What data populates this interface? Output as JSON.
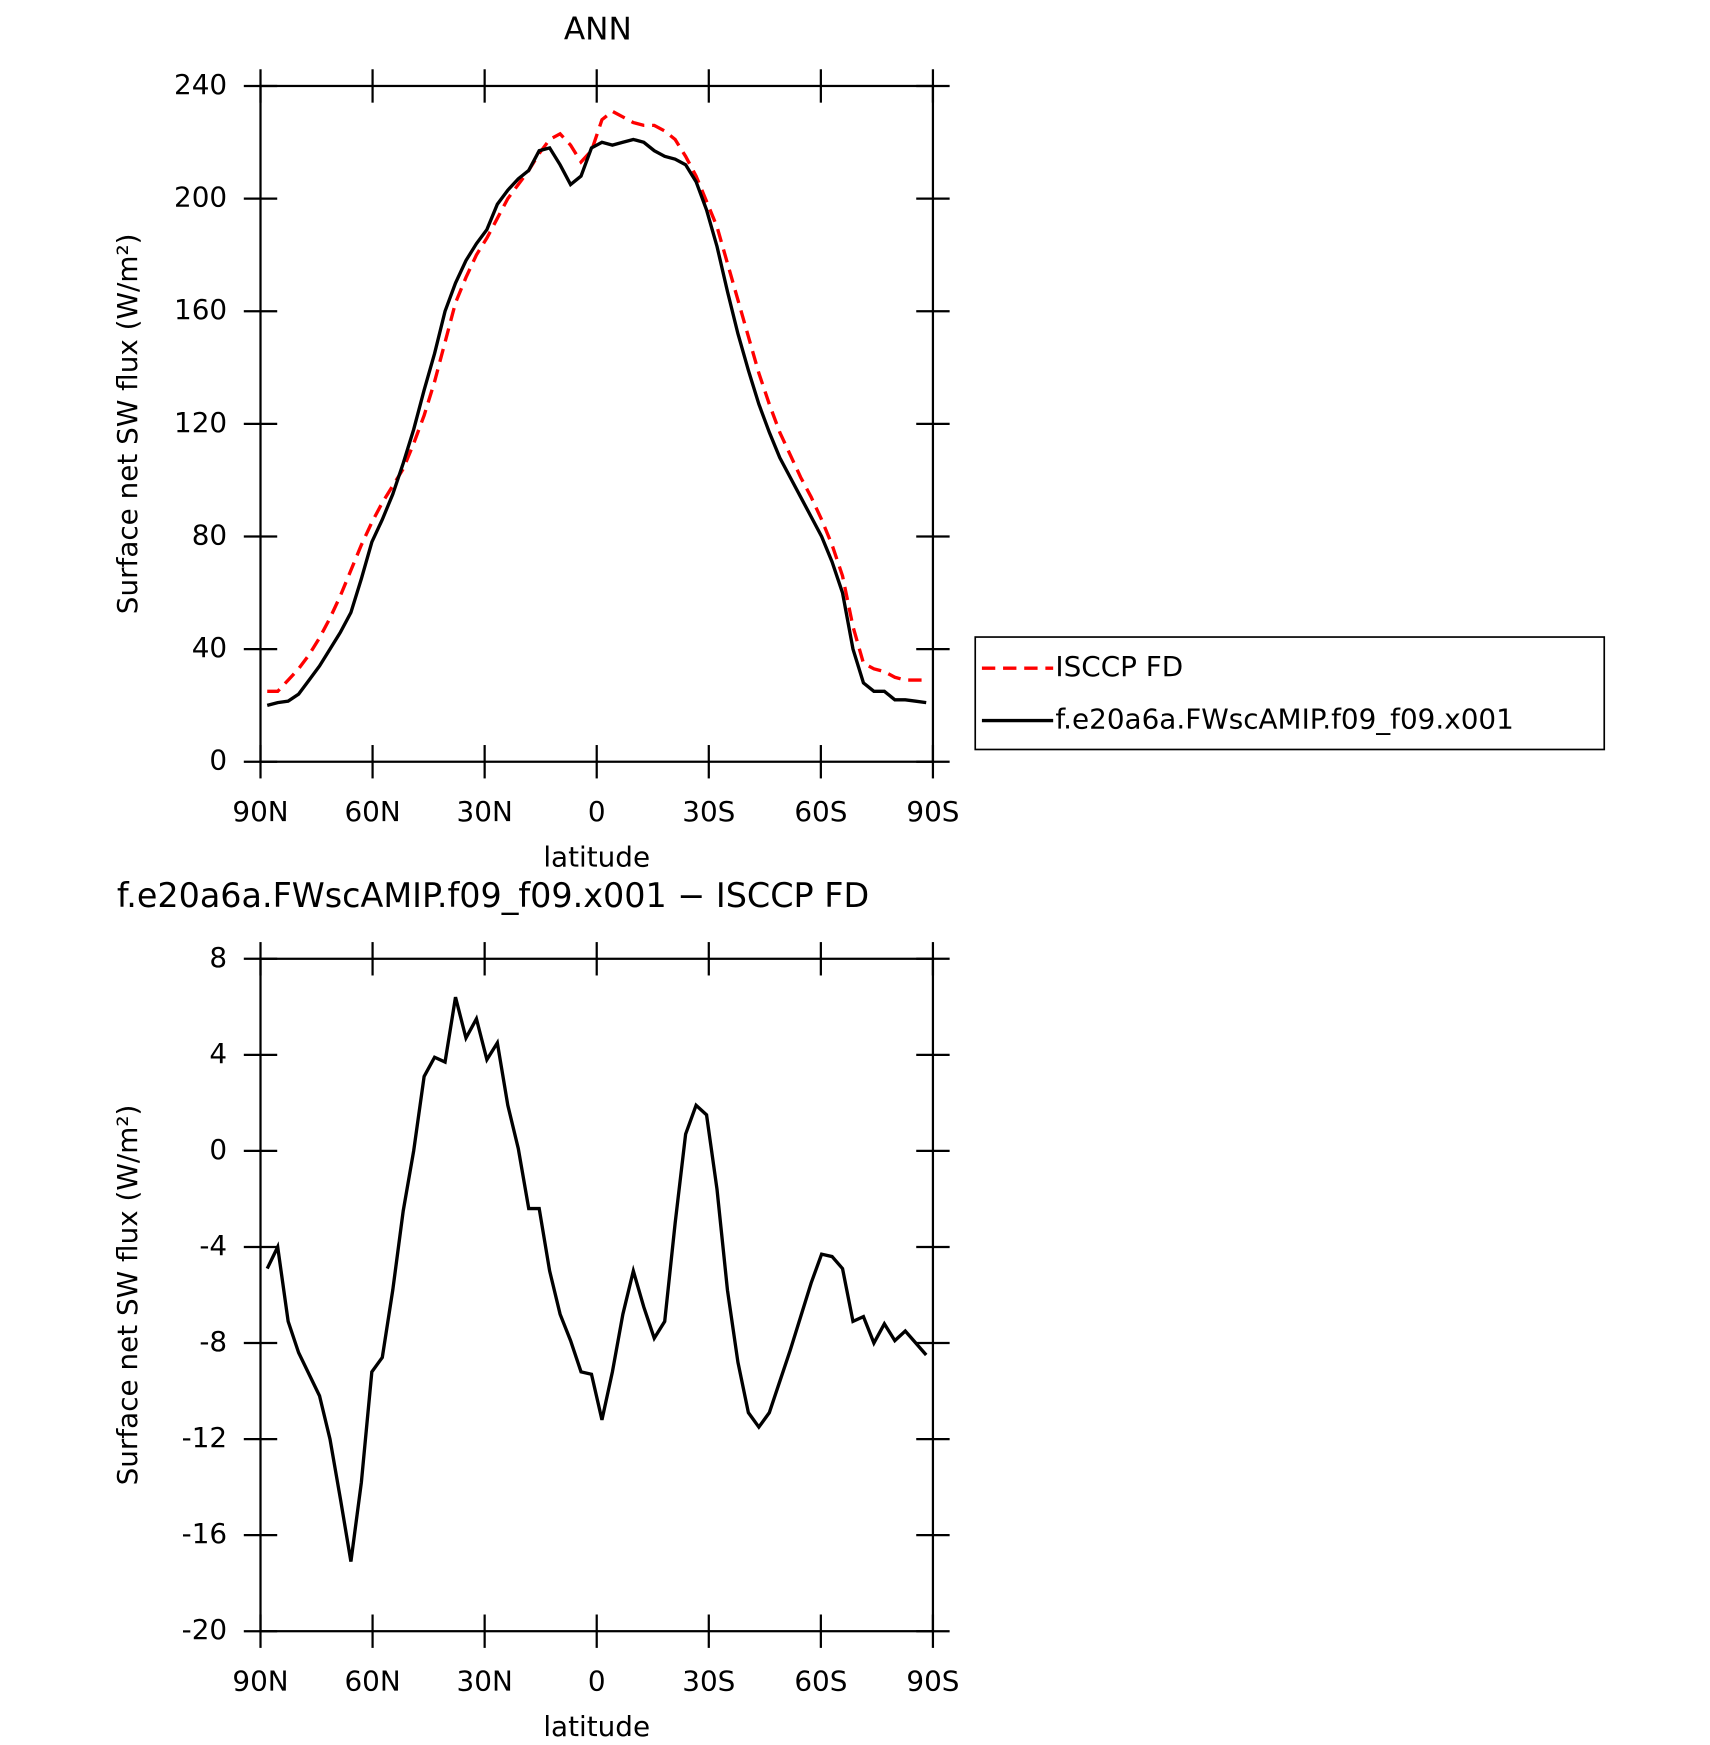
{
  "chart_data": [
    {
      "type": "line",
      "title": "ANN",
      "xlabel": "latitude",
      "ylabel": "Surface net SW flux (W/m²)",
      "x": [
        88.2,
        85.4,
        82.6,
        79.8,
        77.0,
        74.2,
        71.4,
        68.6,
        65.8,
        63.0,
        60.2,
        57.4,
        54.6,
        51.8,
        49.0,
        46.2,
        43.4,
        40.6,
        37.8,
        35.0,
        32.2,
        29.4,
        26.6,
        23.8,
        21.0,
        18.2,
        15.4,
        12.6,
        9.8,
        7.0,
        4.2,
        1.4,
        -1.4,
        -4.2,
        -7.0,
        -9.8,
        -12.6,
        -15.4,
        -18.2,
        -21.0,
        -23.8,
        -26.6,
        -29.4,
        -32.2,
        -35.0,
        -37.8,
        -40.6,
        -43.4,
        -46.2,
        -49.0,
        -51.8,
        -54.6,
        -57.4,
        -60.2,
        -63.0,
        -65.8,
        -68.6,
        -71.4,
        -74.2,
        -77.0,
        -79.8,
        -82.6,
        -85.4,
        -88.2
      ],
      "series": [
        {
          "name": "ISCCP FD",
          "color": "#ff0000",
          "dashed": true,
          "values": [
            25,
            25,
            29,
            33,
            38,
            44,
            51,
            59,
            68,
            77,
            85,
            92,
            98,
            104,
            113,
            123,
            135,
            149,
            163,
            172,
            180,
            186,
            193,
            200,
            205,
            210,
            216,
            221,
            223,
            219,
            213,
            217,
            228,
            231,
            229,
            227,
            226,
            226,
            224,
            221,
            215,
            208,
            199,
            190,
            177,
            164,
            151,
            138,
            127,
            117,
            109,
            101,
            94,
            86,
            77,
            66,
            48,
            35,
            33,
            32,
            30,
            29,
            29,
            29
          ]
        },
        {
          "name": "f.e20a6a.FWscAMIP.f09_f09.x001",
          "color": "#000000",
          "dashed": false,
          "values": [
            20,
            21,
            21.5,
            24,
            29,
            34,
            40,
            46,
            53,
            65,
            78,
            86,
            95,
            106,
            118,
            132,
            145,
            160,
            170,
            178,
            184,
            189,
            198,
            203,
            207,
            210,
            217,
            218,
            212,
            205,
            208,
            218,
            220,
            219,
            220,
            221,
            220,
            217,
            215,
            214,
            212,
            206,
            196,
            183,
            167,
            152,
            139,
            127,
            117,
            108,
            101,
            94,
            87,
            80,
            71,
            60,
            40,
            28,
            25,
            25,
            22,
            22,
            21.5,
            21
          ]
        }
      ],
      "xlim": [
        90,
        -90
      ],
      "xticks": [
        {
          "value": 90,
          "label": "90N"
        },
        {
          "value": 60,
          "label": "60N"
        },
        {
          "value": 30,
          "label": "30N"
        },
        0,
        {
          "value": -30,
          "label": "30S"
        },
        {
          "value": -60,
          "label": "60S"
        },
        {
          "value": -90,
          "label": "90S"
        }
      ],
      "ylim": [
        0,
        240
      ],
      "yticks": [
        0,
        40,
        80,
        120,
        160,
        200,
        240
      ],
      "legend": "right"
    },
    {
      "type": "line",
      "title": "f.e20a6a.FWscAMIP.f09_f09.x001 − ISCCP FD",
      "xlabel": "latitude",
      "ylabel": "Surface net SW flux (W/m²)",
      "x": [
        88.2,
        85.4,
        82.6,
        79.8,
        77.0,
        74.2,
        71.4,
        68.6,
        65.8,
        63.0,
        60.2,
        57.4,
        54.6,
        51.8,
        49.0,
        46.2,
        43.4,
        40.6,
        37.8,
        35.0,
        32.2,
        29.4,
        26.6,
        23.8,
        21.0,
        18.2,
        15.4,
        12.6,
        9.8,
        7.0,
        4.2,
        1.4,
        -1.4,
        -4.2,
        -7.0,
        -9.8,
        -12.6,
        -15.4,
        -18.2,
        -21.0,
        -23.8,
        -26.6,
        -29.4,
        -32.2,
        -35.0,
        -37.8,
        -40.6,
        -43.4,
        -46.2,
        -49.0,
        -51.8,
        -54.6,
        -57.4,
        -60.2,
        -63.0,
        -65.8,
        -68.6,
        -71.4,
        -74.2,
        -77.0,
        -79.8,
        -82.6,
        -85.4,
        -88.2
      ],
      "series": [
        {
          "color": "#000000",
          "dashed": false,
          "values": [
            -4.9,
            -4.0,
            -7.1,
            -8.4,
            -9.3,
            -10.2,
            -12.0,
            -14.5,
            -17.1,
            -13.8,
            -9.2,
            -8.6,
            -5.8,
            -2.5,
            0.0,
            3.1,
            3.9,
            3.7,
            6.4,
            4.7,
            5.5,
            3.8,
            4.5,
            1.9,
            0.1,
            -2.4,
            -2.4,
            -5.0,
            -6.8,
            -7.9,
            -9.2,
            -9.3,
            -11.2,
            -9.2,
            -6.8,
            -5.0,
            -6.5,
            -7.8,
            -7.1,
            -3.0,
            0.7,
            1.9,
            1.5,
            -1.6,
            -5.8,
            -8.8,
            -10.9,
            -11.5,
            -10.9,
            -9.6,
            -8.3,
            -6.9,
            -5.5,
            -4.3,
            -4.4,
            -4.9,
            -7.1,
            -6.9,
            -8.0,
            -7.2,
            -7.9,
            -7.5,
            -8.0,
            -8.5
          ]
        }
      ],
      "xlim": [
        90,
        -90
      ],
      "xticks": [
        {
          "value": 90,
          "label": "90N"
        },
        {
          "value": 60,
          "label": "60N"
        },
        {
          "value": 30,
          "label": "30N"
        },
        0,
        {
          "value": -30,
          "label": "30S"
        },
        {
          "value": -60,
          "label": "60S"
        },
        {
          "value": -90,
          "label": "90S"
        }
      ],
      "ylim": [
        -20,
        8
      ],
      "yticks": [
        -20,
        -16,
        -12,
        -8,
        -4,
        0,
        4,
        8
      ]
    }
  ]
}
